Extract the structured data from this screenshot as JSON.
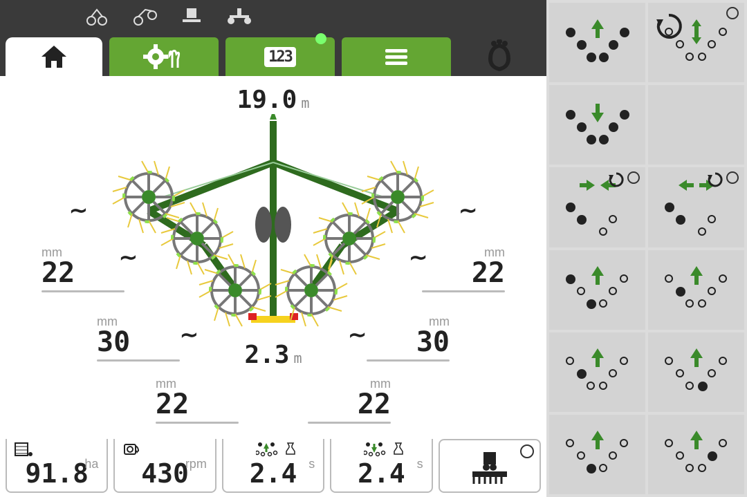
{
  "colors": {
    "green": "#64A633",
    "green_light": "#8EE04B",
    "dark": "#3a3a3a",
    "panel": "#d3d3d3",
    "text": "#222222",
    "muted": "#999999"
  },
  "header": {
    "counter": "123"
  },
  "working_width": {
    "value": "19.0",
    "unit": "m"
  },
  "swath_width": {
    "value": "2.3",
    "unit": "m"
  },
  "rotor_heights": {
    "outer_left": {
      "value": "22",
      "unit": "mm"
    },
    "outer_right": {
      "value": "22",
      "unit": "mm"
    },
    "mid_left": {
      "value": "30",
      "unit": "mm"
    },
    "mid_right": {
      "value": "30",
      "unit": "mm"
    },
    "inner_left": {
      "value": "22",
      "unit": "mm"
    },
    "inner_right": {
      "value": "22",
      "unit": "mm"
    }
  },
  "status": {
    "area": {
      "value": "91.8",
      "unit": "ha"
    },
    "speed": {
      "value": "430",
      "unit": "rpm"
    },
    "raise_t": {
      "value": "2.4",
      "unit": "s"
    },
    "lower_t": {
      "value": "2.4",
      "unit": "s"
    }
  },
  "controls": [
    [
      {
        "name": "raise-all",
        "arrows": "up",
        "pattern": [
          "f",
          "f",
          "f",
          "f",
          "f",
          "f"
        ],
        "indicator": false
      },
      {
        "name": "auto-cycle",
        "arrows": "updown",
        "pattern": [
          "o",
          "o",
          "o",
          "o",
          "o",
          "o"
        ],
        "indicator": true,
        "overlay": "cycle"
      }
    ],
    [
      {
        "name": "lower-all",
        "arrows": "down",
        "pattern": [
          "f",
          "f",
          "f",
          "f",
          "f",
          "f"
        ],
        "indicator": false
      },
      {
        "name": "empty",
        "empty": true
      }
    ],
    [
      {
        "name": "width-in",
        "arrows": "in",
        "pattern": [
          "f",
          "f",
          "-",
          "o",
          "o",
          "-"
        ],
        "indicator": true,
        "overlay": "small-cycle"
      },
      {
        "name": "width-out",
        "arrows": "out",
        "pattern": [
          "f",
          "f",
          "-",
          "o",
          "o",
          "-"
        ],
        "indicator": true,
        "overlay": "small-cycle"
      }
    ],
    [
      {
        "name": "raise-outer",
        "arrows": "up",
        "pattern": [
          "f",
          "o",
          "f",
          "o",
          "o",
          "o"
        ],
        "indicator": false
      },
      {
        "name": "raise-outer-2",
        "arrows": "up",
        "pattern": [
          "o",
          "f",
          "o",
          "o",
          "o",
          "o"
        ],
        "indicator": false,
        "mirror": true
      }
    ],
    [
      {
        "name": "raise-mid-l",
        "arrows": "up",
        "pattern": [
          "o",
          "f",
          "o",
          "o",
          "o",
          "o"
        ],
        "indicator": false
      },
      {
        "name": "raise-mid-r",
        "arrows": "up",
        "pattern": [
          "o",
          "o",
          "o",
          "f",
          "o",
          "o"
        ],
        "indicator": false
      }
    ],
    [
      {
        "name": "raise-inner-l",
        "arrows": "up",
        "pattern": [
          "o",
          "o",
          "f",
          "o",
          "o",
          "o"
        ],
        "indicator": false
      },
      {
        "name": "raise-inner-r",
        "arrows": "up",
        "pattern": [
          "o",
          "o",
          "o",
          "o",
          "f",
          "o"
        ],
        "indicator": false
      }
    ]
  ]
}
